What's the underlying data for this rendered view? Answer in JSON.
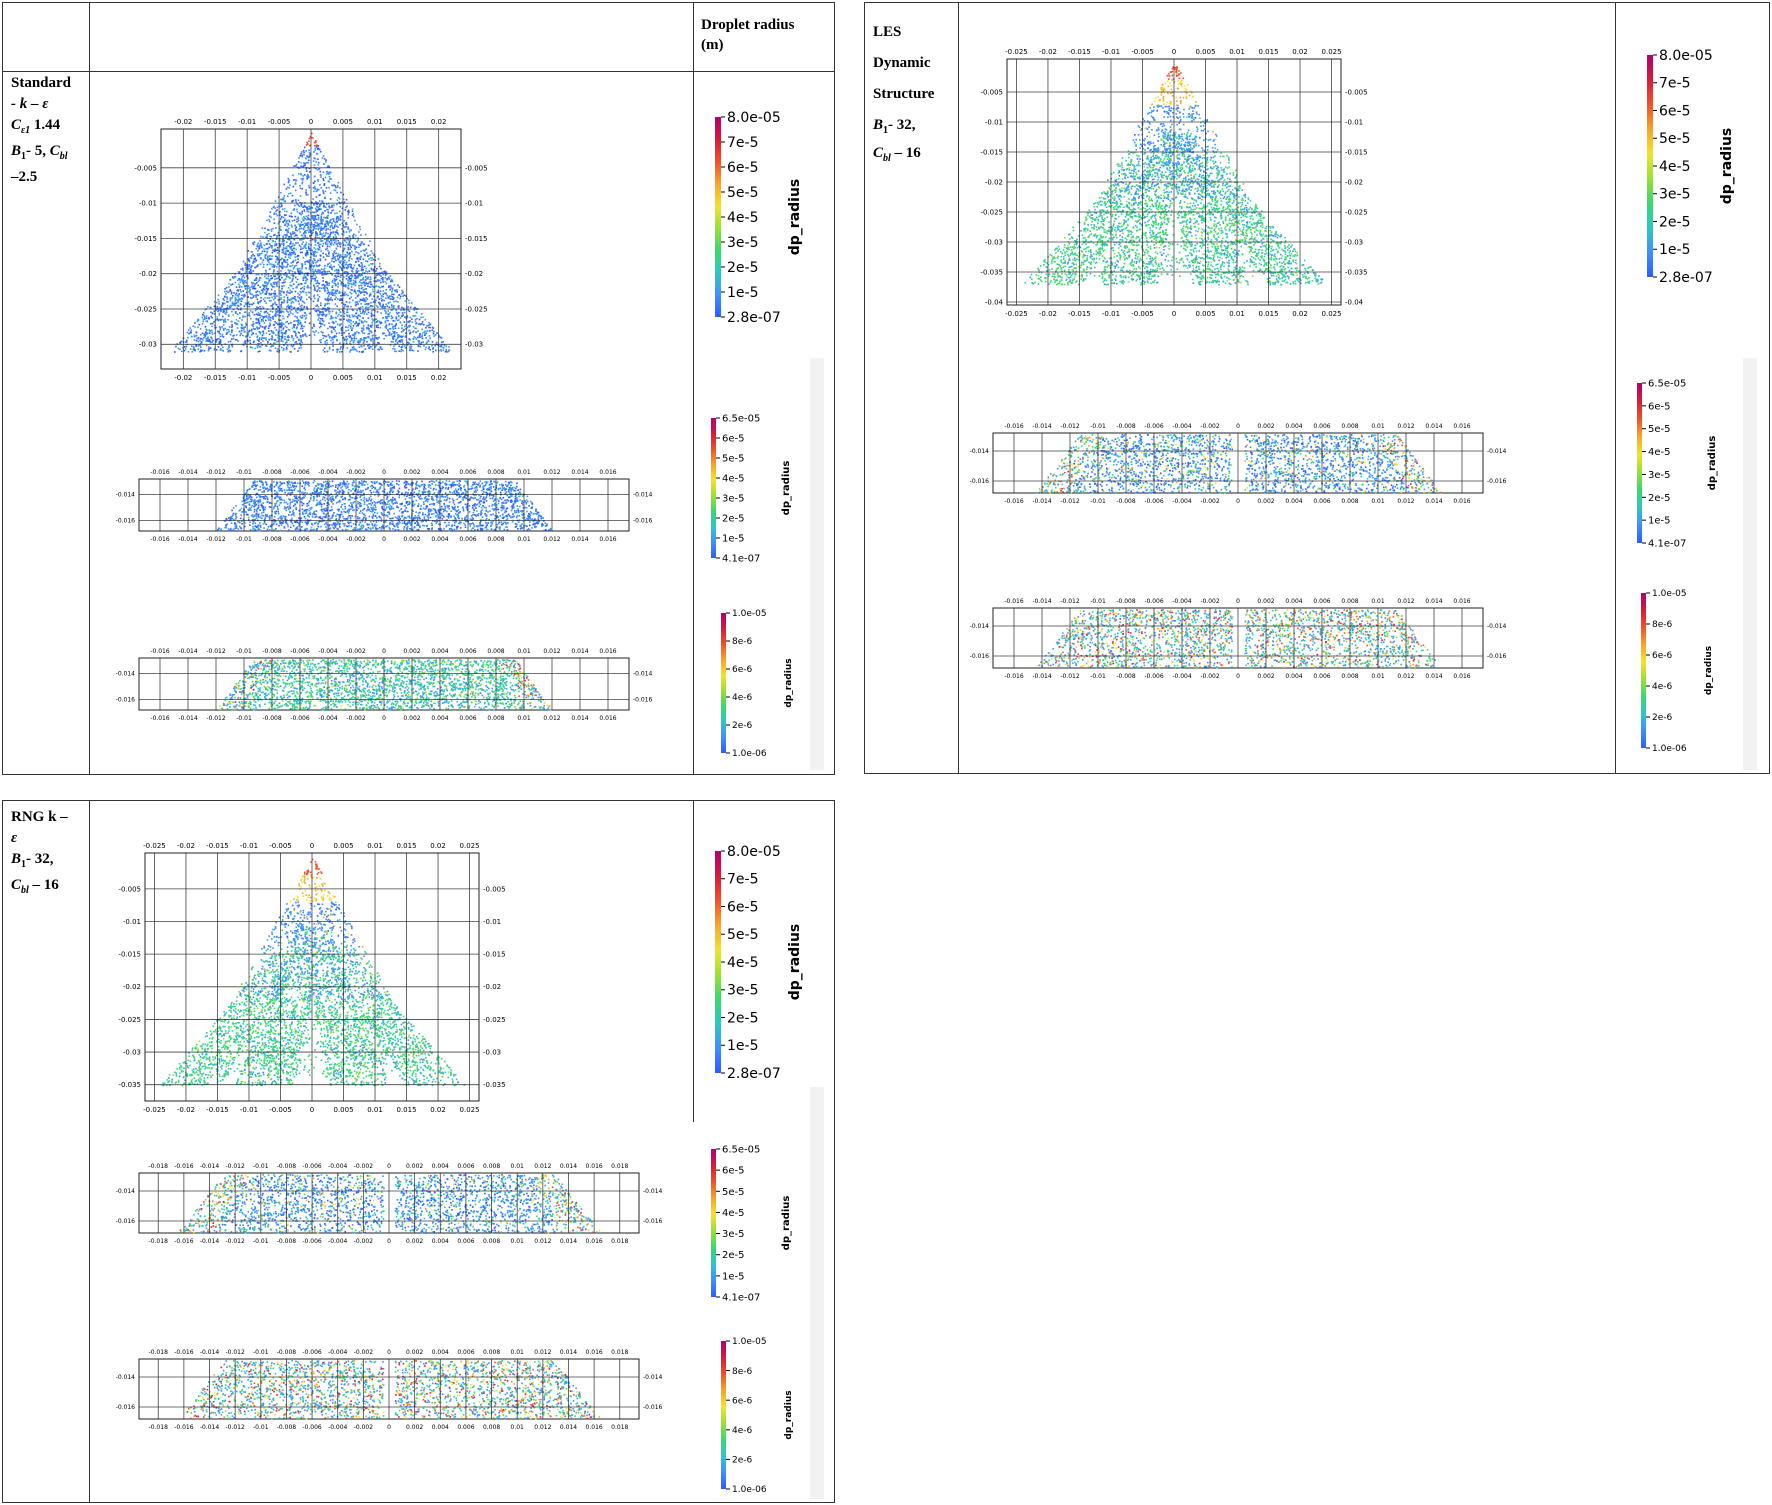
{
  "header": {
    "colorbar_title": "Droplet radius (m)"
  },
  "models": [
    {
      "id": "std",
      "label_lines": [
        "Standard",
        "- k – ε",
        "C_ε1 1.44",
        "B_1- 5, C_bl",
        "–2.5"
      ],
      "label_1": "Standard",
      "label_2": "- k – ε",
      "label_3_sym": "C",
      "label_3_sub": "ε1",
      "label_3_val": " 1.44",
      "label_4_a": "B",
      "label_4_a_sub": "1",
      "label_4_b": "- 5, ",
      "label_4_c": "C",
      "label_4_c_sub": "bl",
      "label_5": "–2.5"
    },
    {
      "id": "les",
      "label_1": "LES",
      "label_2": "Dynamic",
      "label_3": "Structure",
      "label_4_a": "B",
      "label_4_a_sub": "1",
      "label_4_b": "- 32,",
      "label_5_a": "C",
      "label_5_a_sub": "bl",
      "label_5_b": " – 16"
    },
    {
      "id": "rng",
      "label_1": "RNG  k  –",
      "label_2": "ε",
      "label_3_a": "B",
      "label_3_a_sub": "1",
      "label_3_b": "- 32,",
      "label_4_a": "C",
      "label_4_a_sub": "bl",
      "label_4_b": " – 16"
    }
  ],
  "colors": {
    "spectrum": [
      "#2b5cff",
      "#3f8fff",
      "#2fc6c6",
      "#39d96b",
      "#9be035",
      "#f2e22f",
      "#f7a52a",
      "#f0502b",
      "#d81b3a",
      "#b00070"
    ],
    "grid": "#222222"
  },
  "chart_data": [
    {
      "id": "std-side",
      "type": "scatter",
      "view": "side",
      "x_ticks": [
        "-0.02",
        "-0.015",
        "-0.01",
        "-0.005",
        "0",
        "0.005",
        "0.01",
        "0.015",
        "0.02"
      ],
      "y_ticks": [
        "-0.005",
        "-0.01",
        "-0.015",
        "-0.02",
        "-0.025",
        "-0.03"
      ],
      "xlim": [
        -0.0235,
        0.0235
      ],
      "ylim": [
        -0.0335,
        0.0005
      ],
      "plumes": [
        -0.0175,
        -0.0065,
        0.0065,
        0.0175
      ],
      "plume_bottom": -0.031,
      "color_mode": "blue",
      "colorbar": {
        "title": "dp_radius",
        "ticks": [
          "8.0e-05",
          "7e-5",
          "6e-5",
          "5e-5",
          "4e-5",
          "3e-5",
          "2e-5",
          "1e-5",
          "2.8e-07"
        ]
      }
    },
    {
      "id": "std-s1",
      "type": "scatter",
      "view": "section",
      "x_ticks": [
        "-0.016",
        "-0.014",
        "-0.012",
        "-0.01",
        "-0.008",
        "-0.006",
        "-0.004",
        "-0.002",
        "0",
        "0.002",
        "0.004",
        "0.006",
        "0.008",
        "0.01",
        "0.012",
        "0.014",
        "0.016"
      ],
      "y_ticks": [
        "-0.014",
        "-0.016"
      ],
      "xlim": [
        -0.0175,
        0.0175
      ],
      "ylim": [
        -0.0168,
        -0.0128
      ],
      "half_width": 0.012,
      "gap": false,
      "color_mode": "blue",
      "colorbar": {
        "title": "dp_radius",
        "ticks": [
          "6.5e-05",
          "6e-5",
          "5e-5",
          "4e-5",
          "3e-5",
          "2e-5",
          "1e-5",
          "4.1e-07"
        ]
      }
    },
    {
      "id": "std-s2",
      "type": "scatter",
      "view": "section",
      "x_ticks": [
        "-0.016",
        "-0.014",
        "-0.012",
        "-0.01",
        "-0.008",
        "-0.006",
        "-0.004",
        "-0.002",
        "0",
        "0.002",
        "0.004",
        "0.006",
        "0.008",
        "0.01",
        "0.012",
        "0.014",
        "0.016"
      ],
      "y_ticks": [
        "-0.014",
        "-0.016"
      ],
      "xlim": [
        -0.0175,
        0.0175
      ],
      "ylim": [
        -0.0168,
        -0.0128
      ],
      "half_width": 0.012,
      "gap": false,
      "color_mode": "greenstripe",
      "colorbar": {
        "title": "dp_radius",
        "ticks": [
          "1.0e-05",
          "8e-6",
          "6e-6",
          "4e-6",
          "2e-6",
          "1.0e-06"
        ]
      }
    },
    {
      "id": "les-side",
      "type": "scatter",
      "view": "side",
      "x_ticks": [
        "-0.025",
        "-0.02",
        "-0.015",
        "-0.01",
        "-0.005",
        "0",
        "0.005",
        "0.01",
        "0.015",
        "0.02",
        "0.025"
      ],
      "y_ticks": [
        "-0.005",
        "-0.01",
        "-0.015",
        "-0.02",
        "-0.025",
        "-0.03",
        "-0.035",
        "-0.04"
      ],
      "xlim": [
        -0.0265,
        0.0265
      ],
      "ylim": [
        -0.0405,
        0.0005
      ],
      "plumes": [
        -0.0195,
        -0.0075,
        0.0075,
        0.0195
      ],
      "plume_bottom": -0.037,
      "color_mode": "green",
      "colorbar": {
        "title": "dp_radius",
        "ticks": [
          "8.0e-05",
          "7e-5",
          "6e-5",
          "5e-5",
          "4e-5",
          "3e-5",
          "2e-5",
          "1e-5",
          "2.8e-07"
        ]
      }
    },
    {
      "id": "les-s1",
      "type": "scatter",
      "view": "section",
      "x_ticks": [
        "-0.016",
        "-0.014",
        "-0.012",
        "-0.01",
        "-0.008",
        "-0.006",
        "-0.004",
        "-0.002",
        "0",
        "0.002",
        "0.004",
        "0.006",
        "0.008",
        "0.01",
        "0.012",
        "0.014",
        "0.016"
      ],
      "y_ticks": [
        "-0.014",
        "-0.016"
      ],
      "xlim": [
        -0.0175,
        0.0175
      ],
      "ylim": [
        -0.0168,
        -0.0128
      ],
      "half_width": 0.0145,
      "gap": true,
      "color_mode": "mixed",
      "colorbar": {
        "title": "dp_radius",
        "ticks": [
          "6.5e-05",
          "6e-5",
          "5e-5",
          "4e-5",
          "3e-5",
          "2e-5",
          "1e-5",
          "4.1e-07"
        ]
      }
    },
    {
      "id": "les-s2",
      "type": "scatter",
      "view": "section",
      "x_ticks": [
        "-0.016",
        "-0.014",
        "-0.012",
        "-0.01",
        "-0.008",
        "-0.006",
        "-0.004",
        "-0.002",
        "0",
        "0.002",
        "0.004",
        "0.006",
        "0.008",
        "0.01",
        "0.012",
        "0.014",
        "0.016"
      ],
      "y_ticks": [
        "-0.014",
        "-0.016"
      ],
      "xlim": [
        -0.0175,
        0.0175
      ],
      "ylim": [
        -0.0168,
        -0.0128
      ],
      "half_width": 0.0145,
      "gap": true,
      "color_mode": "hot",
      "colorbar": {
        "title": "dp_radius",
        "ticks": [
          "1.0e-05",
          "8e-6",
          "6e-6",
          "4e-6",
          "2e-6",
          "1.0e-06"
        ]
      }
    },
    {
      "id": "rng-side",
      "type": "scatter",
      "view": "side",
      "x_ticks": [
        "-0.025",
        "-0.02",
        "-0.015",
        "-0.01",
        "-0.005",
        "0",
        "0.005",
        "0.01",
        "0.015",
        "0.02",
        "0.025"
      ],
      "y_ticks": [
        "-0.005",
        "-0.01",
        "-0.015",
        "-0.02",
        "-0.025",
        "-0.03",
        "-0.035"
      ],
      "xlim": [
        -0.0265,
        0.0265
      ],
      "ylim": [
        -0.0375,
        0.0005
      ],
      "plumes": [
        -0.0195,
        -0.0075,
        0.0075,
        0.0195
      ],
      "plume_bottom": -0.035,
      "color_mode": "green",
      "colorbar": {
        "title": "dp_radius",
        "ticks": [
          "8.0e-05",
          "7e-5",
          "6e-5",
          "5e-5",
          "4e-5",
          "3e-5",
          "2e-5",
          "1e-5",
          "2.8e-07"
        ]
      }
    },
    {
      "id": "rng-s1",
      "type": "scatter",
      "view": "section",
      "x_ticks": [
        "-0.018",
        "-0.016",
        "-0.014",
        "-0.012",
        "-0.01",
        "-0.008",
        "-0.006",
        "-0.004",
        "-0.002",
        "0",
        "0.002",
        "0.004",
        "0.006",
        "0.008",
        "0.01",
        "0.012",
        "0.014",
        "0.016",
        "0.018"
      ],
      "y_ticks": [
        "-0.014",
        "-0.016"
      ],
      "xlim": [
        -0.0195,
        0.0195
      ],
      "ylim": [
        -0.0168,
        -0.0128
      ],
      "half_width": 0.0165,
      "gap": true,
      "color_mode": "mixed",
      "colorbar": {
        "title": "dp_radius",
        "ticks": [
          "6.5e-05",
          "6e-5",
          "5e-5",
          "4e-5",
          "3e-5",
          "2e-5",
          "1e-5",
          "4.1e-07"
        ]
      }
    },
    {
      "id": "rng-s2",
      "type": "scatter",
      "view": "section",
      "x_ticks": [
        "-0.018",
        "-0.016",
        "-0.014",
        "-0.012",
        "-0.01",
        "-0.008",
        "-0.006",
        "-0.004",
        "-0.002",
        "0",
        "0.002",
        "0.004",
        "0.006",
        "0.008",
        "0.01",
        "0.012",
        "0.014",
        "0.016",
        "0.018"
      ],
      "y_ticks": [
        "-0.014",
        "-0.016"
      ],
      "xlim": [
        -0.0195,
        0.0195
      ],
      "ylim": [
        -0.0168,
        -0.0128
      ],
      "half_width": 0.0165,
      "gap": true,
      "color_mode": "hot",
      "colorbar": {
        "title": "dp_radius",
        "ticks": [
          "1.0e-05",
          "8e-6",
          "6e-6",
          "4e-6",
          "2e-6",
          "1.0e-06"
        ]
      }
    }
  ]
}
